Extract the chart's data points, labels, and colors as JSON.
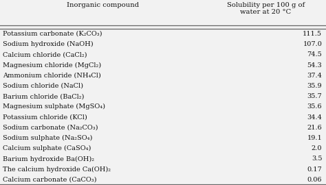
{
  "col1_header": "Inorganic compound",
  "col2_header": "Solubility per 100 g of\nwater at 20 °C",
  "rows": [
    [
      "Potassium carbonate (K₂CO₃)",
      "111.5"
    ],
    [
      "Sodium hydroxide (NaOH)",
      "107.0"
    ],
    [
      "Calcium chloride (CaCl₂)",
      "74.5"
    ],
    [
      "Magnesium chloride (MgCl₂)",
      "54.3"
    ],
    [
      "Ammonium chloride (NH₄Cl)",
      "37.4"
    ],
    [
      "Sodium chloride (NaCl)",
      "35.9"
    ],
    [
      "Barium chloride (BaCl₂)",
      "35.7"
    ],
    [
      "Magnesium sulphate (MgSO₄)",
      "35.6"
    ],
    [
      "Potassium chloride (KCl)",
      "34.4"
    ],
    [
      "Sodium carbonate (Na₂CO₃)",
      "21.6"
    ],
    [
      "Sodium sulphate (Na₂SO₄)",
      "19.1"
    ],
    [
      "Calcium sulphate (CaSO₄)",
      "2.0"
    ],
    [
      "Barium hydroxide Ba(OH)₂",
      "3.5"
    ],
    [
      "The calcium hydroxide Ca(OH)₂",
      "0.17"
    ],
    [
      "Calcium carbonate (CaCO₃)",
      "0.06"
    ]
  ],
  "bg_color": "#d9d9d9",
  "cell_bg_color": "#f0f0f0",
  "text_color": "#111111",
  "line_color": "#666666",
  "font_size": 7.0,
  "header_font_size": 7.2
}
